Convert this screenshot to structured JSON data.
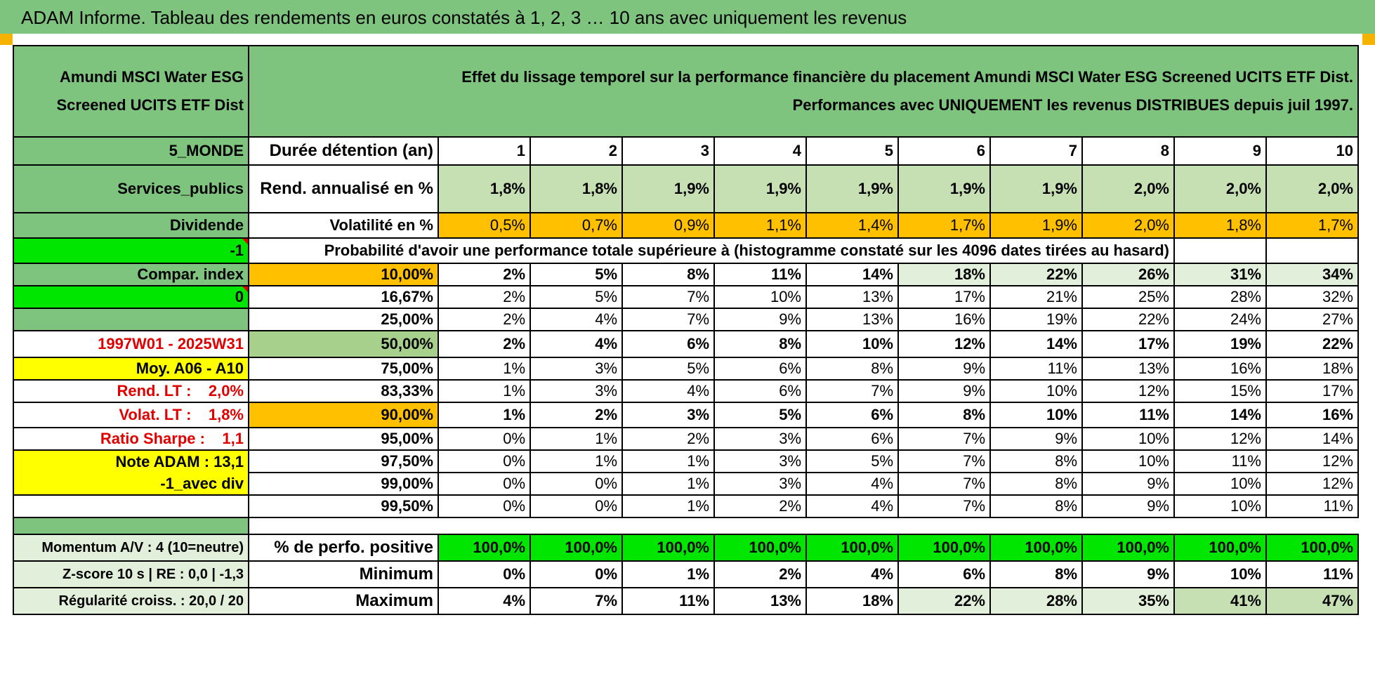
{
  "window_title": "ADAM Informe. Tableau des rendements en euros constatés à 1, 2, 3 … 10 ans avec uniquement les revenus",
  "fund_name": [
    "Amundi MSCI Water ESG",
    "Screened UCITS ETF Dist"
  ],
  "header_text": [
    "Effet du lissage temporel sur la performance financière du placement Amundi MSCI Water ESG Screened UCITS ETF Dist.",
    "Performances avec UNIQUEMENT les revenus DISTRIBUES depuis juil 1997."
  ],
  "side": {
    "zone": "5_MONDE",
    "sector": "Services_publics",
    "type": "Dividende",
    "flag1": "-1",
    "compar": "Compar. index",
    "flag2": "0",
    "period": "1997W01 - 2025W31",
    "moy": "Moy. A06 - A10",
    "rend_lt": "Rend. LT :    2,0%",
    "volat_lt": "Volat. LT :    1,8%",
    "sharpe": "Ratio Sharpe :    1,1",
    "note": "Note ADAM : 13,1",
    "avec_div": "-1_avec div",
    "momentum": "Momentum A/V : 4 (10=neutre)",
    "zscore": "Z-score 10 s | RE : 0,0 | -1,3",
    "regularite": "Régularité croiss. : 20,0 / 20"
  },
  "labels": {
    "duree": "Durée détention (an)",
    "rend": "Rend. annualisé en %",
    "vol": "Volatilité en %",
    "proba": "Probabilité d'avoir une performance totale supérieure à (histogramme constaté sur les 4096 dates tirées au hasard)",
    "positive": "% de perfo. positive",
    "minimum": "Minimum",
    "maximum": "Maximum"
  },
  "years": [
    "1",
    "2",
    "3",
    "4",
    "5",
    "6",
    "7",
    "8",
    "9",
    "10"
  ],
  "rend": [
    "1,8%",
    "1,8%",
    "1,9%",
    "1,9%",
    "1,9%",
    "1,9%",
    "1,9%",
    "2,0%",
    "2,0%",
    "2,0%"
  ],
  "vol": [
    "0,5%",
    "0,7%",
    "0,9%",
    "1,1%",
    "1,4%",
    "1,7%",
    "1,9%",
    "2,0%",
    "1,8%",
    "1,7%"
  ],
  "prob_rows": [
    {
      "pct": "10,00%",
      "vals": [
        "2%",
        "5%",
        "8%",
        "11%",
        "14%",
        "18%",
        "22%",
        "26%",
        "31%",
        "34%"
      ]
    },
    {
      "pct": "16,67%",
      "vals": [
        "2%",
        "5%",
        "7%",
        "10%",
        "13%",
        "17%",
        "21%",
        "25%",
        "28%",
        "32%"
      ]
    },
    {
      "pct": "25,00%",
      "vals": [
        "2%",
        "4%",
        "7%",
        "9%",
        "13%",
        "16%",
        "19%",
        "22%",
        "24%",
        "27%"
      ]
    },
    {
      "pct": "50,00%",
      "vals": [
        "2%",
        "4%",
        "6%",
        "8%",
        "10%",
        "12%",
        "14%",
        "17%",
        "19%",
        "22%"
      ]
    },
    {
      "pct": "75,00%",
      "vals": [
        "1%",
        "3%",
        "5%",
        "6%",
        "8%",
        "9%",
        "11%",
        "13%",
        "16%",
        "18%"
      ]
    },
    {
      "pct": "83,33%",
      "vals": [
        "1%",
        "3%",
        "4%",
        "6%",
        "7%",
        "9%",
        "10%",
        "12%",
        "15%",
        "17%"
      ]
    },
    {
      "pct": "90,00%",
      "vals": [
        "1%",
        "2%",
        "3%",
        "5%",
        "6%",
        "8%",
        "10%",
        "11%",
        "14%",
        "16%"
      ]
    },
    {
      "pct": "95,00%",
      "vals": [
        "0%",
        "1%",
        "2%",
        "3%",
        "6%",
        "7%",
        "9%",
        "10%",
        "12%",
        "14%"
      ]
    },
    {
      "pct": "97,50%",
      "vals": [
        "0%",
        "1%",
        "1%",
        "3%",
        "5%",
        "7%",
        "8%",
        "10%",
        "11%",
        "12%"
      ]
    },
    {
      "pct": "99,00%",
      "vals": [
        "0%",
        "0%",
        "1%",
        "3%",
        "4%",
        "7%",
        "8%",
        "9%",
        "10%",
        "12%"
      ]
    },
    {
      "pct": "99,50%",
      "vals": [
        "0%",
        "0%",
        "1%",
        "2%",
        "4%",
        "7%",
        "8%",
        "9%",
        "10%",
        "11%"
      ]
    }
  ],
  "positive": [
    "100,0%",
    "100,0%",
    "100,0%",
    "100,0%",
    "100,0%",
    "100,0%",
    "100,0%",
    "100,0%",
    "100,0%",
    "100,0%"
  ],
  "minimum": [
    "0%",
    "0%",
    "1%",
    "2%",
    "4%",
    "6%",
    "8%",
    "9%",
    "10%",
    "11%"
  ],
  "maximum": [
    "4%",
    "7%",
    "11%",
    "13%",
    "18%",
    "22%",
    "28%",
    "35%",
    "41%",
    "47%"
  ],
  "colors": {
    "green_dark": "#7ec47e",
    "green_bright": "#00e600",
    "yellow": "#ffff00",
    "orange": "#ffc000",
    "red_text": "#e00000"
  }
}
